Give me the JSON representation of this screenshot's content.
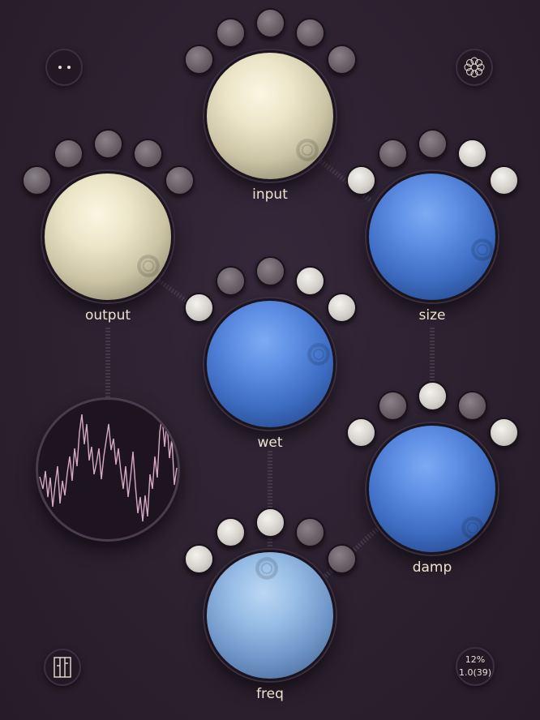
{
  "knobs": {
    "input": {
      "label": "input",
      "color": "#ece5c8"
    },
    "output": {
      "label": "output",
      "color": "#ece5c8"
    },
    "size": {
      "label": "size",
      "color": "#5e8fe4"
    },
    "wet": {
      "label": "wet",
      "color": "#5e8fe4"
    },
    "damp": {
      "label": "damp",
      "color": "#5e8fe4"
    },
    "freq": {
      "label": "freq",
      "color": "#98bde6"
    }
  },
  "corner_buttons": {
    "top_left": {
      "icon": "two-dots-icon"
    },
    "top_right": {
      "icon": "flower-pattern-icon"
    },
    "bottom_left": {
      "icon": "meter-icon"
    },
    "bottom_right": {
      "line1": "12%",
      "line2": "1.0(39)"
    }
  },
  "colors": {
    "background": "#2e2230",
    "label_text": "#ede2cf",
    "waveform": "#d6a9c6"
  }
}
